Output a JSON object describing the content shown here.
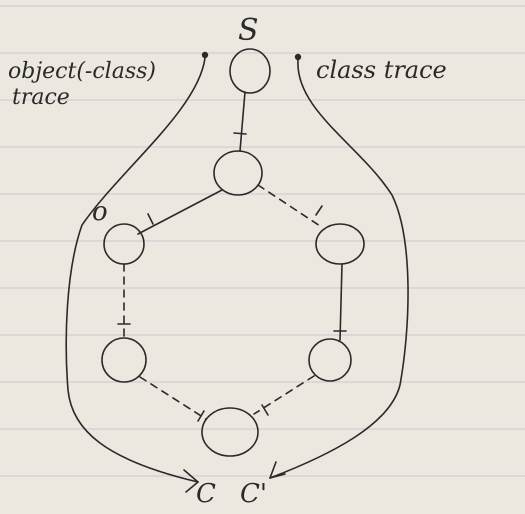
{
  "labels": {
    "source": "S",
    "object_trace": [
      "object(-class)",
      "trace"
    ],
    "class_trace": "class trace",
    "o_label": "o",
    "sink_left": "C",
    "sink_right": "C'"
  },
  "colors": {
    "ink": "#2a2a2a",
    "paper": "#ece8e0",
    "rule": "#cfd0d2"
  }
}
